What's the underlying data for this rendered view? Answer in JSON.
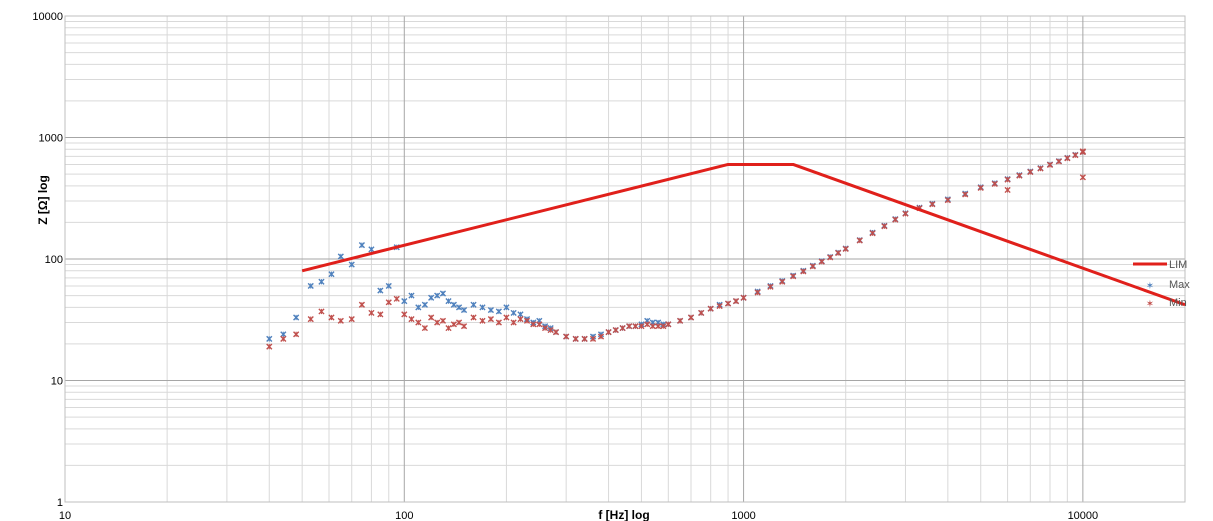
{
  "chart_data": {
    "type": "scatter",
    "title": "",
    "xlabel": "f [Hz] log",
    "ylabel": "Z [Ω] log",
    "xscale": "log",
    "yscale": "log",
    "xlim": [
      10,
      20000
    ],
    "ylim": [
      1,
      10000
    ],
    "x_ticks": [
      10,
      100,
      1000,
      10000
    ],
    "x_tick_labels": [
      "10",
      "100",
      "1000",
      "10000"
    ],
    "y_ticks": [
      1,
      10,
      100,
      1000,
      10000
    ],
    "y_tick_labels": [
      "1",
      "10",
      "100",
      "1000",
      "10000"
    ],
    "grid": true,
    "legend_position": "right",
    "colors": {
      "lim": "#e0201b",
      "max": "#4f81bd",
      "min": "#c0504d"
    },
    "series": [
      {
        "name": "LIM",
        "kind": "line",
        "x": [
          50,
          900,
          1400,
          20000
        ],
        "y": [
          80,
          600,
          600,
          42
        ]
      },
      {
        "name": "Max",
        "kind": "markers",
        "x": [
          40,
          44,
          48,
          53,
          57,
          61,
          65,
          70,
          75,
          80,
          85,
          90,
          95,
          100,
          105,
          110,
          115,
          120,
          125,
          130,
          135,
          140,
          145,
          150,
          160,
          170,
          180,
          190,
          200,
          210,
          220,
          230,
          240,
          250,
          260,
          270,
          280,
          300,
          320,
          340,
          360,
          380,
          400,
          420,
          440,
          460,
          480,
          500,
          520,
          540,
          560,
          580,
          600,
          650,
          700,
          750,
          800,
          850,
          900,
          950,
          1000,
          1100,
          1200,
          1300,
          1400,
          1500,
          1600,
          1700,
          1800,
          1900,
          2000,
          2200,
          2400,
          2600,
          2800,
          3000,
          3300,
          3600,
          4000,
          4500,
          5000,
          5500,
          6000,
          6500,
          7000,
          7500,
          8000,
          8500,
          9000,
          9500,
          10000
        ],
        "y": [
          22,
          24,
          33,
          60,
          65,
          75,
          105,
          90,
          130,
          120,
          55,
          60,
          125,
          45,
          50,
          40,
          42,
          48,
          50,
          52,
          45,
          42,
          40,
          38,
          42,
          40,
          38,
          37,
          40,
          36,
          35,
          32,
          30,
          31,
          28,
          27,
          25,
          23,
          22,
          22,
          23,
          24,
          25,
          26,
          27,
          28,
          28,
          29,
          31,
          30,
          30,
          29,
          29,
          31,
          33,
          36,
          39,
          42,
          43,
          45,
          48,
          54,
          60,
          66,
          73,
          80,
          88,
          96,
          104,
          113,
          122,
          143,
          165,
          188,
          213,
          238,
          265,
          285,
          310,
          345,
          390,
          420,
          455,
          490,
          525,
          560,
          600,
          640,
          680,
          720,
          760
        ]
      },
      {
        "name": "Min",
        "kind": "markers",
        "x": [
          40,
          44,
          48,
          53,
          57,
          61,
          65,
          70,
          75,
          80,
          85,
          90,
          95,
          100,
          105,
          110,
          115,
          120,
          125,
          130,
          135,
          140,
          145,
          150,
          160,
          170,
          180,
          190,
          200,
          210,
          220,
          230,
          240,
          250,
          260,
          270,
          280,
          300,
          320,
          340,
          360,
          380,
          400,
          420,
          440,
          460,
          480,
          500,
          520,
          540,
          560,
          580,
          600,
          650,
          700,
          750,
          800,
          850,
          900,
          950,
          1000,
          1100,
          1200,
          1300,
          1400,
          1500,
          1600,
          1700,
          1800,
          1900,
          2000,
          2200,
          2400,
          2600,
          2800,
          3000,
          3300,
          3600,
          4000,
          4500,
          5000,
          5500,
          6000,
          6500,
          7000,
          7500,
          8000,
          8500,
          9000,
          9500,
          10000,
          10000,
          10000,
          6000
        ],
        "y": [
          19,
          22,
          24,
          32,
          37,
          33,
          31,
          32,
          42,
          36,
          35,
          44,
          47,
          35,
          32,
          30,
          27,
          33,
          30,
          31,
          27,
          29,
          30,
          28,
          33,
          31,
          32,
          30,
          33,
          30,
          32,
          31,
          29,
          29,
          27,
          26,
          25,
          23,
          22,
          22,
          22,
          23,
          25,
          26,
          27,
          28,
          28,
          28,
          29,
          28,
          28,
          28,
          29,
          31,
          33,
          36,
          39,
          41,
          43,
          45,
          48,
          53,
          59,
          65,
          72,
          79,
          87,
          95,
          103,
          112,
          121,
          142,
          163,
          186,
          211,
          236,
          262,
          282,
          305,
          340,
          385,
          415,
          450,
          485,
          520,
          555,
          595,
          635,
          675,
          715,
          760,
          770,
          470,
          370
        ]
      }
    ]
  }
}
